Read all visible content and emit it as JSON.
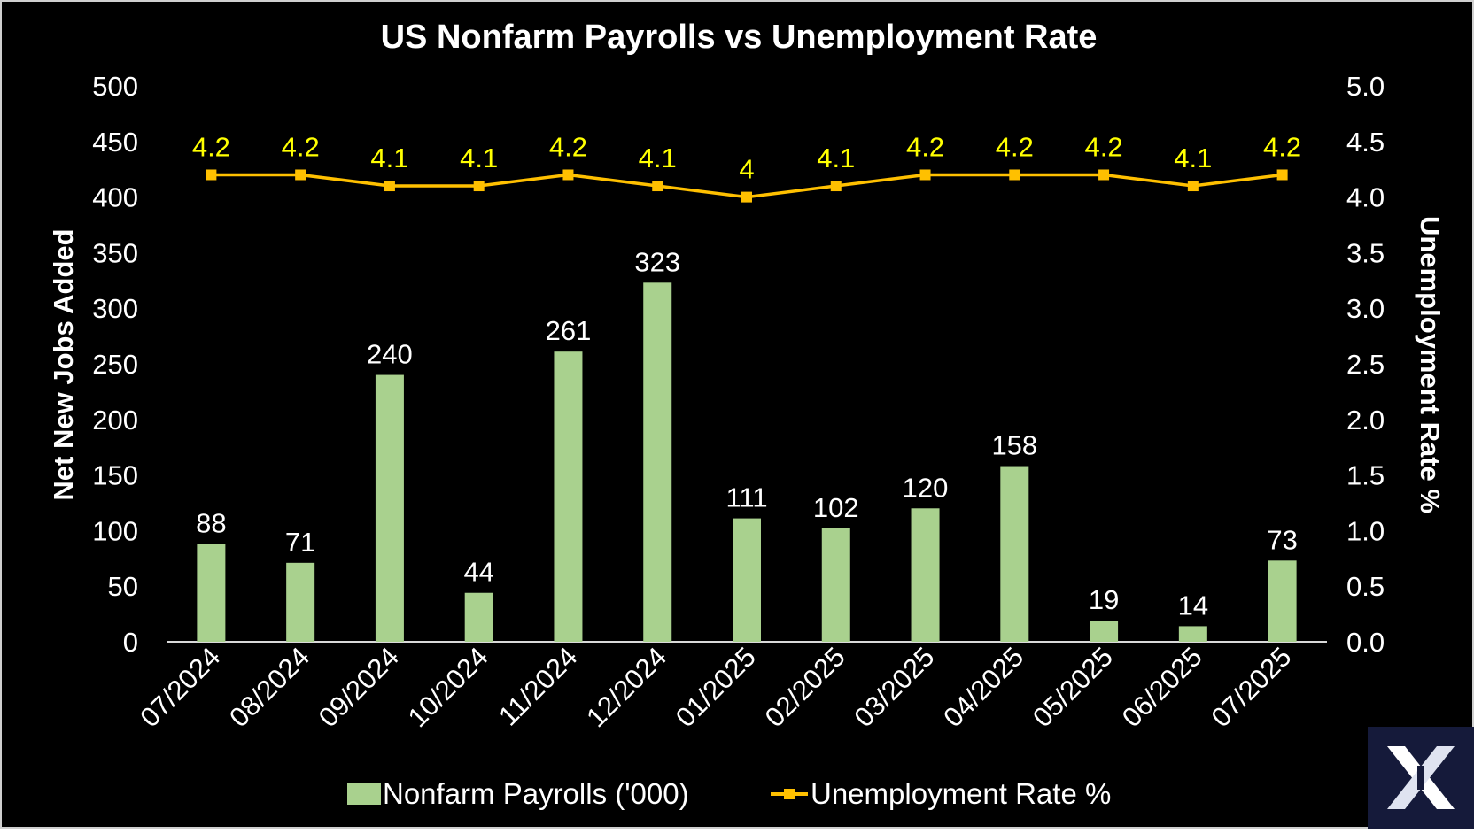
{
  "chart_data": {
    "type": "bar",
    "title": "US Nonfarm Payrolls vs Unemployment Rate",
    "xlabel": "",
    "ylabel": "Net New Jobs Added",
    "y2label": "Unemployment Rate %",
    "categories": [
      "07/2024",
      "08/2024",
      "09/2024",
      "10/2024",
      "11/2024",
      "12/2024",
      "01/2025",
      "02/2025",
      "03/2025",
      "04/2025",
      "05/2025",
      "06/2025",
      "07/2025"
    ],
    "ylim": [
      0,
      500
    ],
    "y2lim": [
      0,
      5
    ],
    "yticks": [
      "0",
      "50",
      "100",
      "150",
      "200",
      "250",
      "300",
      "350",
      "400",
      "450",
      "500"
    ],
    "y2ticks": [
      "0.0",
      "0.5",
      "1.0",
      "1.5",
      "2.0",
      "2.5",
      "3.0",
      "3.5",
      "4.0",
      "4.5",
      "5.0"
    ],
    "series": [
      {
        "name": "Nonfarm Payrolls ('000)",
        "type": "bar",
        "axis": "left",
        "color": "#a9d18e",
        "values": [
          88,
          71,
          240,
          44,
          261,
          323,
          111,
          102,
          120,
          158,
          19,
          14,
          73
        ],
        "labels": [
          "88",
          "71",
          "240",
          "44",
          "261",
          "323",
          "111",
          "102",
          "120",
          "158",
          "19",
          "14",
          "73"
        ]
      },
      {
        "name": "Unemployment Rate %",
        "type": "line",
        "axis": "right",
        "color": "#ffc000",
        "label_color": "#ffff00",
        "values": [
          4.2,
          4.2,
          4.1,
          4.1,
          4.2,
          4.1,
          4.0,
          4.1,
          4.2,
          4.2,
          4.2,
          4.1,
          4.2
        ],
        "labels": [
          "4.2",
          "4.2",
          "4.1",
          "4.1",
          "4.2",
          "4.1",
          "4",
          "4.1",
          "4.2",
          "4.2",
          "4.2",
          "4.1",
          "4.2"
        ]
      }
    ],
    "legend": {
      "position": "bottom"
    },
    "grid": false
  },
  "logo": {
    "icon": "x-logo-icon"
  }
}
